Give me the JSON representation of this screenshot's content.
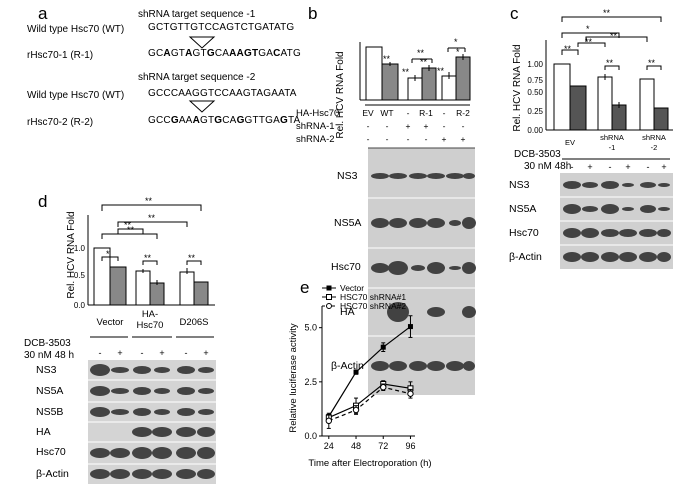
{
  "panels": {
    "a": {
      "letter": "a",
      "wt1": {
        "label": "Wild type Hsc70 (WT)",
        "target": "shRNA target sequence -1",
        "seq": "GCTGTTGTCCAGTCTGATATG"
      },
      "r1": {
        "label": "rHsc70-1 (R-1)",
        "seq": "GCAGTAGTGCAAAGTGACATG"
      },
      "wt2": {
        "label": "Wild type Hsc70 (WT)",
        "target": "shRNA target sequence -2",
        "seq": "GCCCAAGGTCCAAGTAGAATA"
      },
      "r2": {
        "label": "rHsc70-2 (R-2)",
        "seq": "GCCGAAAGTGCAGGTTGAGTA"
      }
    },
    "b": {
      "letter": "b",
      "ylabel": "Rel. HCV RNA Fold",
      "rows": [
        {
          "label": "HA-Hsc70",
          "vals": [
            "EV",
            "WT",
            "-",
            "R-1",
            "-",
            "R-2"
          ]
        },
        {
          "label": "shRNA-1",
          "vals": [
            "-",
            "-",
            "+",
            "+",
            "-",
            "-"
          ]
        },
        {
          "label": "shRNA-2",
          "vals": [
            "-",
            "-",
            "-",
            "-",
            "+",
            "+"
          ]
        }
      ],
      "blots": [
        "NS3",
        "NS5A",
        "Hsc70",
        "HA",
        "β-Actin"
      ]
    },
    "c": {
      "letter": "c",
      "ylabel": "Rel. HCV RNA Fold",
      "groups": [
        "EV",
        "shRNA -1",
        "shRNA -2"
      ],
      "treatment": "DCB-3503",
      "dose": "30 nM 48h",
      "signs": [
        "-",
        "+",
        "-",
        "+",
        "-",
        "+"
      ],
      "blots": [
        "NS3",
        "NS5A",
        "Hsc70",
        "β-Actin"
      ]
    },
    "d": {
      "letter": "d",
      "ylabel": "Rel. HCV RNA Fold",
      "groups": [
        "Vector",
        "HA- Hsc70",
        "D206S"
      ],
      "treatment": "DCB-3503",
      "dose": "30 nM 48 h",
      "signs": [
        "-",
        "+",
        "-",
        "+",
        "-",
        "+"
      ],
      "blots": [
        "NS3",
        "NS5A",
        "NS5B",
        "HA",
        "Hsc70",
        "β-Actin"
      ]
    },
    "e": {
      "letter": "e"
    }
  },
  "sig": "**",
  "sig1": "*",
  "chart_data": [
    {
      "type": "bar",
      "panel": "b",
      "ylabel": "Rel. HCV RNA Fold",
      "categories": [
        "EV",
        "WT",
        "R-1",
        "R-2"
      ],
      "series": [
        {
          "values": [
            1.0,
            0.0,
            0.42,
            0.45
          ],
          "fill": "#ffffff"
        },
        {
          "values": [
            0.68,
            0.0,
            0.6,
            0.8
          ],
          "fill": "#888888"
        }
      ],
      "note": "bars shown: EV white 1.0, EV grey 0.68, R-1 white 0.42, R-1 grey 0.60, R-2 white 0.45, R-2 grey 0.80"
    },
    {
      "type": "bar",
      "panel": "c",
      "ylabel": "Rel. HCV RNA Fold",
      "ylim": [
        0,
        1.0
      ],
      "yticks": [
        "0.00",
        "0.25",
        "0.50",
        "0.75",
        "1.00"
      ],
      "categories": [
        "EV",
        "shRNA -1",
        "shRNA -2"
      ],
      "series": [
        {
          "values": [
            1.0,
            0.81,
            0.78
          ],
          "fill": "#ffffff"
        },
        {
          "values": [
            0.67,
            0.37,
            0.32
          ],
          "fill": "#555555"
        }
      ]
    },
    {
      "type": "bar",
      "panel": "d",
      "ylabel": "Rel. HCV RNA Fold",
      "ylim": [
        0,
        1.0
      ],
      "yticks": [
        "0.0",
        "0.5",
        "1.0"
      ],
      "categories": [
        "Vector",
        "HA- Hsc70",
        "D206S"
      ],
      "series": [
        {
          "values": [
            1.0,
            0.59,
            0.57
          ],
          "fill": "#ffffff"
        },
        {
          "values": [
            0.67,
            0.39,
            0.4
          ],
          "fill": "#888888"
        }
      ]
    },
    {
      "type": "line",
      "panel": "e",
      "xlabel": "Time after Electroporation (h)",
      "ylabel": "Relative luciferase activity",
      "x": [
        24,
        48,
        72,
        96
      ],
      "xticks": [
        "24",
        "48",
        "72",
        "96"
      ],
      "ylim": [
        0,
        6.0
      ],
      "yticks": [
        "0.0",
        "2.5",
        "5.0"
      ],
      "legend": "top-left",
      "series": [
        {
          "name": "Vector",
          "values": [
            0.9,
            2.95,
            4.1,
            5.05
          ],
          "err": [
            0.1,
            0.1,
            0.2,
            0.5
          ],
          "marker": "filled-square",
          "dash": "solid"
        },
        {
          "name": "HSC70 shRNA#1",
          "values": [
            0.85,
            1.4,
            2.4,
            2.2
          ],
          "err": [
            0.1,
            0.35,
            0.15,
            0.3
          ],
          "marker": "open-square",
          "dash": "solid"
        },
        {
          "name": "HSC70 shRNA#2",
          "values": [
            0.7,
            1.2,
            2.25,
            1.95
          ],
          "err": [
            0.35,
            0.2,
            0.15,
            0.2
          ],
          "marker": "open-circle",
          "dash": "dashed"
        }
      ]
    }
  ]
}
